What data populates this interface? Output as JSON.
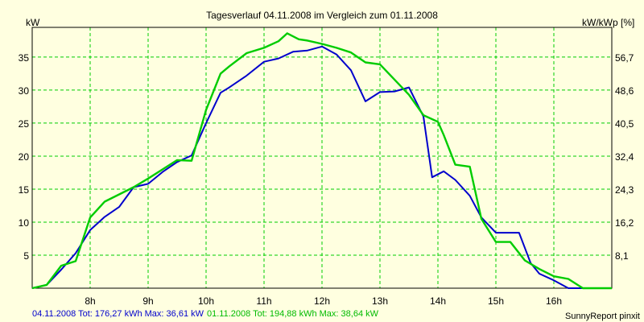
{
  "chart_data": {
    "type": "line",
    "title": "Tagesverlauf 04.11.2008 im Vergleich zum 01.11.2008",
    "ylabel_left": "kW",
    "ylabel_right": "kW/kWp [%]",
    "x_ticks": [
      "8h",
      "9h",
      "10h",
      "11h",
      "12h",
      "13h",
      "14h",
      "15h",
      "16h"
    ],
    "x_tick_hours": [
      8,
      9,
      10,
      11,
      12,
      13,
      14,
      15,
      16
    ],
    "xlim": [
      7.0,
      17.0
    ],
    "ylim": [
      0,
      39.5
    ],
    "y_ticks_left": [
      5,
      10,
      15,
      20,
      25,
      30,
      35
    ],
    "y_ticks_right": [
      "8,1",
      "16,2",
      "24,3",
      "32,4",
      "40,5",
      "48,6",
      "56,7"
    ],
    "grid": true,
    "series": [
      {
        "name": "04.11.2008",
        "color": "#0000cc",
        "x": [
          7.0,
          7.25,
          7.5,
          7.75,
          8.0,
          8.25,
          8.5,
          8.75,
          9.0,
          9.25,
          9.5,
          9.75,
          10.0,
          10.25,
          10.4,
          10.7,
          11.0,
          11.25,
          11.5,
          11.75,
          12.0,
          12.25,
          12.5,
          12.75,
          13.0,
          13.25,
          13.5,
          13.75,
          13.9,
          14.1,
          14.3,
          14.55,
          14.75,
          15.0,
          15.4,
          15.6,
          15.75,
          16.0,
          16.25,
          16.5,
          16.75,
          17.0
        ],
        "y": [
          0.0,
          0.5,
          2.8,
          5.3,
          8.8,
          10.8,
          12.3,
          15.3,
          15.8,
          17.6,
          19.1,
          20.1,
          25.0,
          29.6,
          30.4,
          32.2,
          34.3,
          34.8,
          35.8,
          36.0,
          36.6,
          35.4,
          33.0,
          28.3,
          29.7,
          29.8,
          30.4,
          26.0,
          16.8,
          17.7,
          16.4,
          14.0,
          10.7,
          8.4,
          8.4,
          3.8,
          2.2,
          1.2,
          0.0,
          0.0,
          0.0,
          0.0
        ]
      },
      {
        "name": "01.11.2008",
        "color": "#00cc00",
        "x": [
          7.0,
          7.25,
          7.5,
          7.75,
          8.0,
          8.25,
          8.5,
          8.75,
          9.0,
          9.25,
          9.5,
          9.75,
          10.0,
          10.25,
          10.4,
          10.7,
          11.0,
          11.25,
          11.4,
          11.6,
          11.75,
          12.0,
          12.25,
          12.5,
          12.75,
          13.0,
          13.25,
          13.5,
          13.75,
          14.0,
          14.1,
          14.3,
          14.55,
          14.75,
          15.0,
          15.25,
          15.5,
          15.75,
          16.0,
          16.25,
          16.5,
          16.75,
          17.0
        ],
        "y": [
          0.0,
          0.5,
          3.4,
          4.1,
          10.7,
          13.1,
          14.2,
          15.3,
          16.6,
          18.0,
          19.4,
          19.3,
          27.0,
          32.5,
          33.6,
          35.6,
          36.4,
          37.4,
          38.6,
          37.7,
          37.5,
          37.0,
          36.4,
          35.7,
          34.2,
          33.9,
          31.6,
          29.3,
          26.2,
          25.2,
          23.2,
          18.7,
          18.4,
          10.5,
          7.0,
          7.0,
          4.2,
          2.9,
          1.8,
          1.4,
          0.0,
          0.0,
          0.0
        ]
      }
    ],
    "footer": {
      "series1_summary": "04.11.2008 Tot: 176,27 kWh Max: 36,61 kW",
      "series2_summary": "01.11.2008 Tot: 194,88 kWh Max: 38,64 kW",
      "credit": "SunnyReport pinxit"
    }
  }
}
